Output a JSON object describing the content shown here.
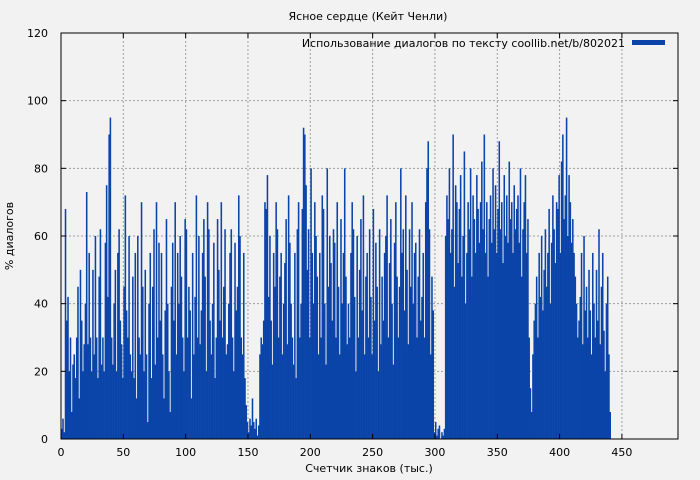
{
  "chart_data": {
    "type": "bar",
    "title": "Ясное сердце (Кейт Ченли)",
    "xlabel": "Счетчик знаков (тыс.)",
    "ylabel": "% диалогов",
    "xlim": [
      0,
      495
    ],
    "ylim": [
      0,
      120
    ],
    "xticks": [
      0,
      50,
      100,
      150,
      200,
      250,
      300,
      350,
      400,
      450
    ],
    "yticks": [
      0,
      20,
      40,
      60,
      80,
      100,
      120
    ],
    "xtick_labels": [
      "0",
      "50",
      "100",
      "150",
      "200",
      "250",
      "300",
      "350",
      "400",
      "450"
    ],
    "ytick_labels": [
      "0",
      "20",
      "40",
      "60",
      "80",
      "100",
      "120"
    ],
    "grid": true,
    "legend_position": "top-right",
    "series": [
      {
        "name": "Использование диалогов по тексту coollib.net/b/802021",
        "color": "#0b44a8",
        "bin_width": 1,
        "x_start": 0,
        "values": [
          3,
          6,
          2,
          68,
          35,
          42,
          20,
          30,
          8,
          22,
          25,
          18,
          30,
          45,
          12,
          50,
          35,
          20,
          28,
          40,
          73,
          28,
          55,
          30,
          20,
          50,
          25,
          60,
          30,
          18,
          48,
          62,
          22,
          30,
          20,
          58,
          75,
          42,
          90,
          95,
          30,
          22,
          40,
          50,
          20,
          55,
          62,
          35,
          28,
          18,
          45,
          72,
          38,
          30,
          60,
          25,
          20,
          48,
          18,
          55,
          12,
          60,
          30,
          25,
          70,
          45,
          20,
          50,
          25,
          5,
          40,
          55,
          18,
          45,
          62,
          22,
          70,
          30,
          58,
          35,
          55,
          25,
          12,
          38,
          65,
          40,
          20,
          8,
          45,
          58,
          35,
          70,
          25,
          55,
          40,
          60,
          48,
          30,
          20,
          65,
          62,
          30,
          45,
          38,
          12,
          55,
          25,
          42,
          72,
          30,
          60,
          28,
          38,
          55,
          65,
          48,
          20,
          70,
          62,
          35,
          25,
          40,
          58,
          18,
          30,
          65,
          50,
          35,
          70,
          30,
          45,
          62,
          25,
          28,
          40,
          55,
          62,
          30,
          20,
          58,
          38,
          45,
          72,
          60,
          30,
          25,
          55,
          18,
          10,
          5,
          2,
          6,
          4,
          12,
          5,
          3,
          6,
          1,
          4,
          25,
          30,
          28,
          35,
          70,
          68,
          78,
          42,
          60,
          35,
          22,
          55,
          45,
          70,
          62,
          30,
          48,
          55,
          25,
          40,
          52,
          65,
          28,
          72,
          58,
          40,
          30,
          22,
          55,
          18,
          62,
          70,
          30,
          40,
          68,
          92,
          90,
          75,
          50,
          62,
          30,
          80,
          55,
          40,
          70,
          60,
          48,
          25,
          55,
          30,
          72,
          68,
          40,
          22,
          80,
          45,
          60,
          52,
          35,
          62,
          58,
          30,
          70,
          45,
          25,
          65,
          40,
          55,
          80,
          48,
          28,
          40,
          30,
          55,
          70,
          62,
          42,
          20,
          60,
          30,
          50,
          65,
          38,
          72,
          25,
          48,
          55,
          30,
          62,
          42,
          25,
          68,
          35,
          58,
          45,
          20,
          62,
          28,
          48,
          35,
          55,
          60,
          72,
          30,
          52,
          65,
          40,
          22,
          58,
          70,
          48,
          30,
          45,
          80,
          55,
          62,
          38,
          72,
          50,
          28,
          62,
          45,
          70,
          40,
          55,
          58,
          30,
          48,
          62,
          35,
          42,
          55,
          30,
          70,
          80,
          88,
          62,
          25,
          48,
          38,
          2,
          5,
          1,
          3,
          4,
          0,
          2,
          1,
          3,
          60,
          72,
          65,
          80,
          55,
          62,
          90,
          45,
          75,
          70,
          52,
          68,
          78,
          48,
          60,
          85,
          40,
          55,
          70,
          62,
          80,
          48,
          72,
          65,
          55,
          78,
          68,
          58,
          70,
          82,
          62,
          90,
          55,
          70,
          48,
          65,
          72,
          58,
          80,
          62,
          75,
          55,
          68,
          88,
          62,
          70,
          52,
          78,
          60,
          72,
          58,
          82,
          65,
          70,
          55,
          75,
          62,
          68,
          72,
          58,
          80,
          48,
          62,
          70,
          78,
          55,
          65,
          30,
          15,
          8,
          25,
          35,
          40,
          48,
          30,
          55,
          42,
          60,
          38,
          50,
          62,
          45,
          55,
          68,
          40,
          58,
          72,
          62,
          52,
          70,
          68,
          78,
          55,
          82,
          90,
          65,
          72,
          95,
          60,
          78,
          70,
          58,
          65,
          55,
          48,
          40,
          30,
          35,
          42,
          55,
          28,
          60,
          38,
          45,
          30,
          50,
          38,
          25,
          55,
          40,
          30,
          50,
          35,
          62,
          28,
          45,
          55,
          32,
          20,
          40,
          48,
          25,
          8
        ]
      }
    ]
  }
}
